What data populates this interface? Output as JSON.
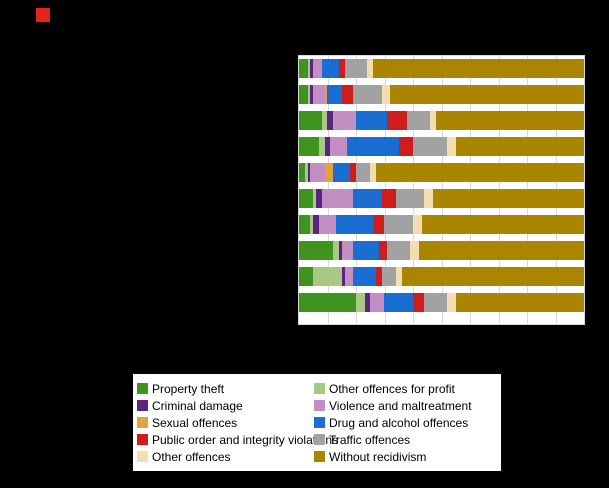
{
  "page": {
    "background": "#000000"
  },
  "logo": {
    "color": "#e3241d"
  },
  "plot": {
    "background": "#ffffff",
    "gridline_color": "#d8d8d8"
  },
  "chart_data": {
    "type": "bar",
    "orientation": "horizontal",
    "stacked": true,
    "unit": "percent",
    "xlim": [
      0,
      100
    ],
    "grid": true,
    "legend_position": "bottom",
    "categories": [
      "",
      "",
      "",
      "",
      "",
      "",
      "",
      "",
      "",
      ""
    ],
    "series": [
      {
        "name": "Property theft",
        "color": "#3f941f",
        "values": [
          3,
          3,
          8,
          7,
          2,
          5,
          4,
          12,
          5,
          20
        ]
      },
      {
        "name": "Other offences for profit",
        "color": "#a7c983",
        "values": [
          1,
          1,
          2,
          2,
          1,
          1,
          1,
          2,
          10,
          3
        ]
      },
      {
        "name": "Criminal damage",
        "color": "#5b2382",
        "values": [
          1,
          1,
          2,
          2,
          1,
          2,
          2,
          1,
          1,
          2
        ]
      },
      {
        "name": "Violence and maltreatment",
        "color": "#c38fc3",
        "values": [
          3,
          4,
          8,
          6,
          5,
          11,
          6,
          4,
          3,
          5
        ]
      },
      {
        "name": "Sexual offences",
        "color": "#e2a33c",
        "values": [
          0,
          1,
          0,
          0,
          3,
          0,
          0,
          0,
          0,
          0
        ]
      },
      {
        "name": "Drug and alcohol offences",
        "color": "#1b6ed1",
        "values": [
          6,
          5,
          11,
          18,
          6,
          10,
          13,
          9,
          8,
          10
        ]
      },
      {
        "name": "Public order and integrity violations",
        "color": "#cf1c1c",
        "values": [
          2,
          4,
          7,
          5,
          2,
          5,
          4,
          3,
          2,
          4
        ]
      },
      {
        "name": "Traffic offences",
        "color": "#a2a2a2",
        "values": [
          8,
          10,
          8,
          12,
          5,
          10,
          10,
          8,
          5,
          8
        ]
      },
      {
        "name": "Other offences",
        "color": "#f4ddb0",
        "values": [
          2,
          3,
          2,
          3,
          2,
          3,
          3,
          3,
          2,
          3
        ]
      },
      {
        "name": "Without recidivism",
        "color": "#aa8500",
        "values": [
          74,
          68,
          52,
          45,
          73,
          53,
          57,
          58,
          64,
          45
        ]
      }
    ]
  },
  "legend": {
    "items": [
      {
        "label": "Property theft",
        "color": "#3f941f"
      },
      {
        "label": "Other offences for profit",
        "color": "#a7c983"
      },
      {
        "label": "Criminal damage",
        "color": "#5b2382"
      },
      {
        "label": "Violence and maltreatment",
        "color": "#c38fc3"
      },
      {
        "label": "Sexual offences",
        "color": "#e2a33c"
      },
      {
        "label": "Drug and alcohol offences",
        "color": "#1b6ed1"
      },
      {
        "label": "Public order and integrity violations",
        "color": "#cf1c1c"
      },
      {
        "label": "Traffic offences",
        "color": "#a2a2a2"
      },
      {
        "label": "Other offences",
        "color": "#f4ddb0"
      },
      {
        "label": "Without recidivism",
        "color": "#aa8500"
      }
    ]
  }
}
